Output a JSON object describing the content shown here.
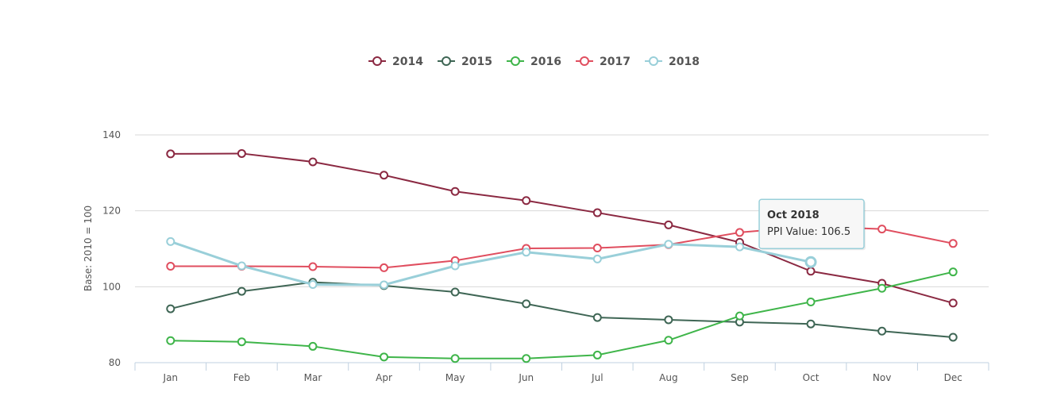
{
  "chart_data": {
    "type": "line",
    "categories": [
      "Jan",
      "Feb",
      "Mar",
      "Apr",
      "May",
      "Jun",
      "Jul",
      "Aug",
      "Sep",
      "Oct",
      "Nov",
      "Dec"
    ],
    "ylabel": "Base: 2010 = 100",
    "ylim": [
      80,
      140
    ],
    "yticks": [
      80,
      100,
      120,
      140
    ],
    "grid": true,
    "legend_position": "top-center",
    "series": [
      {
        "name": "2014",
        "color": "#8b2942",
        "values": [
          135.0,
          135.1,
          132.9,
          129.4,
          125.1,
          122.7,
          119.5,
          116.3,
          111.7,
          104.1,
          100.9,
          95.7
        ]
      },
      {
        "name": "2015",
        "color": "#3f6655",
        "values": [
          94.2,
          98.8,
          101.2,
          100.3,
          98.6,
          95.5,
          91.9,
          91.3,
          90.7,
          90.2,
          88.3,
          86.7
        ]
      },
      {
        "name": "2016",
        "color": "#3fb54a",
        "values": [
          85.8,
          85.5,
          84.3,
          81.5,
          81.1,
          81.1,
          82.0,
          85.9,
          92.3,
          96.0,
          99.6,
          103.9
        ]
      },
      {
        "name": "2017",
        "color": "#e04e5f",
        "values": [
          105.4,
          105.4,
          105.3,
          105.0,
          106.9,
          110.1,
          110.2,
          111.1,
          114.3,
          115.9,
          115.2,
          111.4
        ]
      },
      {
        "name": "2018",
        "color": "#99cfd9",
        "values": [
          111.9,
          105.5,
          100.6,
          100.5,
          105.5,
          109.1,
          107.3,
          111.2,
          110.5,
          106.5,
          null,
          null
        ]
      }
    ],
    "tooltip": {
      "title": "Oct 2018",
      "body": "PPI Value: 106.5",
      "series_index": 4,
      "point_index": 9
    }
  }
}
